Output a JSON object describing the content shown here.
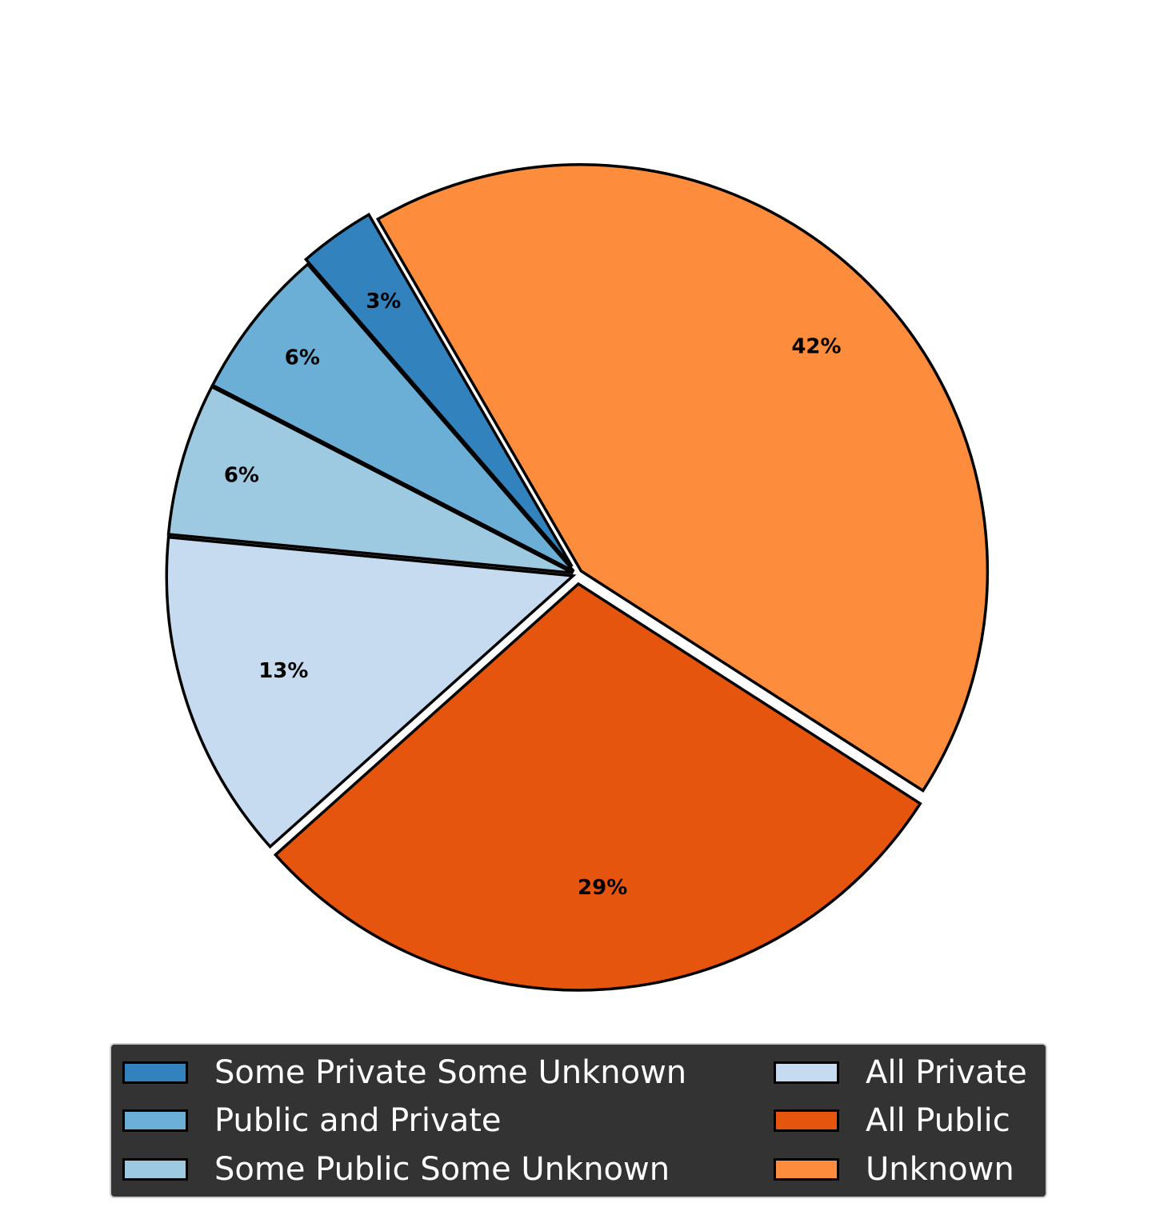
{
  "chart_data": {
    "type": "pie",
    "slices": [
      {
        "label": "Some Private Some Unknown",
        "value": 3,
        "pct_label": "3%",
        "color": "#3182bd"
      },
      {
        "label": "Public and Private",
        "value": 6,
        "pct_label": "6%",
        "color": "#6baed6"
      },
      {
        "label": "Some Public Some Unknown",
        "value": 6,
        "pct_label": "6%",
        "color": "#9ecae1"
      },
      {
        "label": "All Private",
        "value": 13,
        "pct_label": "13%",
        "color": "#c6dbef"
      },
      {
        "label": "All Public",
        "value": 29,
        "pct_label": "29%",
        "color": "#e6550d"
      },
      {
        "label": "Unknown",
        "value": 42,
        "pct_label": "42%",
        "color": "#fd8d3c"
      }
    ],
    "legend": {
      "placement": "bottom",
      "columns": 2,
      "background": "#333333",
      "text_color": "#ffffff"
    }
  }
}
